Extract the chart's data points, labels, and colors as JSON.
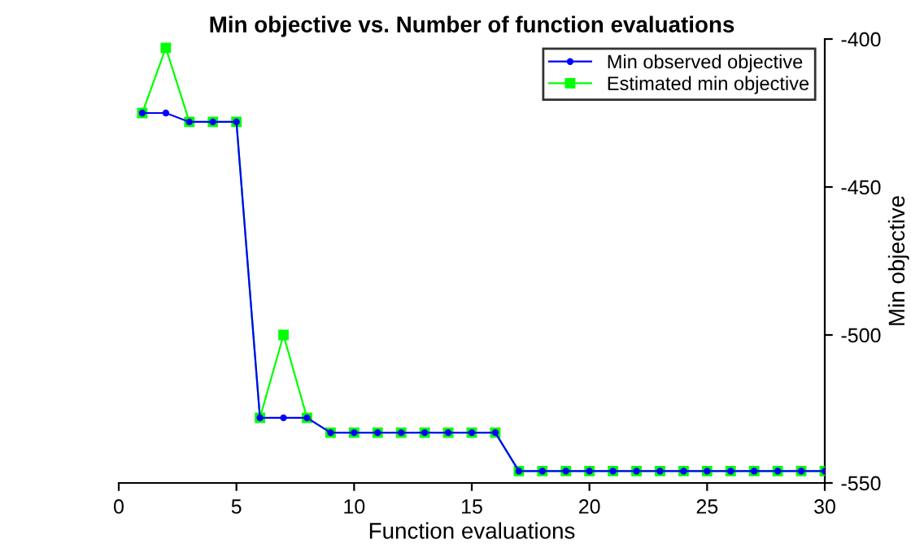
{
  "chart_data": {
    "type": "line",
    "title": "Min objective vs. Number of function evaluations",
    "xlabel": "Function evaluations",
    "ylabel": "Min objective",
    "xlim": [
      0,
      30
    ],
    "xticks": [
      0,
      5,
      10,
      15,
      20,
      25,
      30
    ],
    "ylim": [
      -550,
      -400
    ],
    "yticks": [
      -550,
      -500,
      -450,
      -400
    ],
    "legend": "top right",
    "grid": false,
    "x": [
      1,
      2,
      3,
      4,
      5,
      6,
      7,
      8,
      9,
      10,
      11,
      12,
      13,
      14,
      15,
      16,
      17,
      18,
      19,
      20,
      21,
      22,
      23,
      24,
      25,
      26,
      27,
      28,
      29,
      30
    ],
    "series": [
      {
        "name": "Min observed objective",
        "color": "#0000ff",
        "marker": "circle",
        "values": [
          -425,
          -425,
          -428,
          -428,
          -428,
          -528,
          -528,
          -528,
          -533,
          -533,
          -533,
          -533,
          -533,
          -533,
          -533,
          -533,
          -546,
          -546,
          -546,
          -546,
          -546,
          -546,
          -546,
          -546,
          -546,
          -546,
          -546,
          -546,
          -546,
          -546
        ]
      },
      {
        "name": "Estimated min objective",
        "color": "#00ff00",
        "marker": "square",
        "values": [
          -425,
          -403,
          -428,
          -428,
          -428,
          -528,
          -500,
          -528,
          -533,
          -533,
          -533,
          -533,
          -533,
          -533,
          -533,
          -533,
          -546,
          -546,
          -546,
          -546,
          -546,
          -546,
          -546,
          -546,
          -546,
          -546,
          -546,
          -546,
          -546,
          -546
        ]
      }
    ]
  }
}
